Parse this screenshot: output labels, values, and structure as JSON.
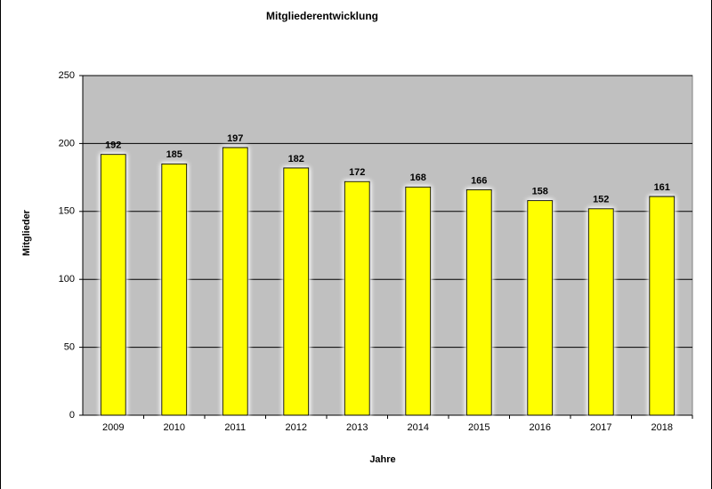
{
  "chart_data": {
    "type": "bar",
    "title": "Mitgliederentwicklung",
    "x_label": "Jahre",
    "y_label": "Mitglieder",
    "categories": [
      "2009",
      "2010",
      "2011",
      "2012",
      "2013",
      "2014",
      "2015",
      "2016",
      "2017",
      "2018"
    ],
    "values": [
      192,
      185,
      197,
      182,
      172,
      168,
      166,
      158,
      152,
      161
    ],
    "color": "#ffff00",
    "ylim": [
      0,
      250
    ],
    "yticks": [
      0,
      50,
      100,
      150,
      200,
      250
    ],
    "grid": true
  }
}
